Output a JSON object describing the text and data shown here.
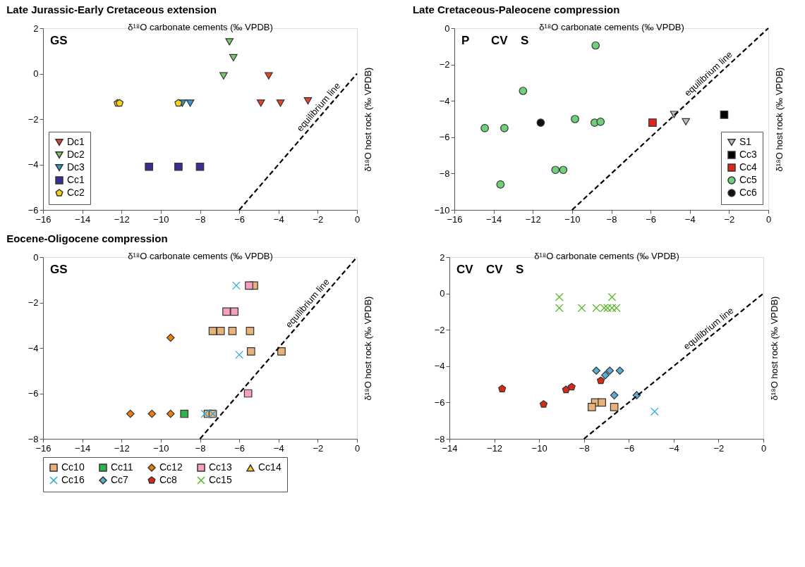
{
  "chart_data": [
    {
      "type": "scatter",
      "title": "Late Jurassic-Early Cretaceous extension",
      "xlabel": "δ¹⁸O carbonate cements (‰ VPDB)",
      "ylabel": "δ¹⁸O host rock (‰ VPDB)",
      "xlim": [
        -16,
        0
      ],
      "ylim": [
        -6,
        2
      ],
      "xticks": [
        -16,
        -14,
        -12,
        -10,
        -8,
        -6,
        -4,
        -2,
        0
      ],
      "yticks": [
        -6,
        -4,
        -2,
        0,
        2
      ],
      "grid": false,
      "legend": "bottom left",
      "series": [
        {
          "name": "Dc1",
          "color": "#e8432a",
          "marker": "triangle-down",
          "x": [
            -4.5,
            -4.9,
            -3.9,
            -2.5
          ],
          "values": [
            -0.1,
            -1.3,
            -1.3,
            -1.2
          ]
        },
        {
          "name": "Dc2",
          "color": "#7cc86a",
          "marker": "triangle-down",
          "x": [
            -6.5,
            -6.3,
            -6.8
          ],
          "values": [
            1.4,
            0.7,
            -0.1
          ]
        },
        {
          "name": "Dc3",
          "color": "#2a9fd6",
          "marker": "triangle-down",
          "x": [
            -8.9,
            -8.5
          ],
          "values": [
            -1.3,
            -1.3
          ]
        },
        {
          "name": "Cc1",
          "color": "#3b2d91",
          "marker": "square",
          "x": [
            -10.6,
            -9.1,
            -8.0
          ],
          "values": [
            -4.1,
            -4.1,
            -4.1
          ]
        },
        {
          "name": "Cc2",
          "color": "#f7d117",
          "x": [
            -12.2,
            -12.1,
            -9.1
          ],
          "values": [
            -1.3,
            -1.3,
            -1.3
          ]
        },
        {
          "name": "equilibrium line",
          "type": "line",
          "color": "#000000",
          "line_style": "dashed",
          "x": [
            -6,
            0
          ],
          "values": [
            -6,
            0
          ]
        }
      ],
      "annotations": [
        "GS"
      ]
    },
    {
      "type": "scatter",
      "title": "Late Cretaceous-Paleocene compression",
      "xlabel": "δ¹⁸O carbonate cements (‰ VPDB)",
      "ylabel": "δ¹⁸O host rock (‰ VPDB)",
      "xlim": [
        -16,
        0
      ],
      "ylim": [
        -10,
        0
      ],
      "xticks": [
        -16,
        -14,
        -12,
        -10,
        -8,
        -6,
        -4,
        -2,
        0
      ],
      "yticks": [
        -10,
        -8,
        -6,
        -4,
        -2,
        0
      ],
      "grid": false,
      "legend": "bottom right",
      "series": [
        {
          "name": "S1",
          "color": "#bdbdbd",
          "marker": "triangle-down",
          "x": [
            -4.8,
            -4.2
          ],
          "values": [
            -4.75,
            -5.15
          ]
        },
        {
          "name": "Cc3",
          "color": "#000000",
          "marker": "square",
          "x": [
            -2.25
          ],
          "values": [
            -4.76
          ]
        },
        {
          "name": "Cc4",
          "color": "#e0251b",
          "marker": "square",
          "x": [
            -5.9
          ],
          "values": [
            -5.2
          ]
        },
        {
          "name": "Cc5",
          "color": "#6fcf7a",
          "marker": "circle",
          "x": [
            -8.8,
            -12.5,
            -14.45,
            -13.45,
            -9.85,
            -8.85,
            -8.55,
            -10.85,
            -10.45,
            -13.65
          ],
          "values": [
            -0.95,
            -3.45,
            -5.5,
            -5.5,
            -5.0,
            -5.2,
            -5.15,
            -7.8,
            -7.8,
            -8.6
          ]
        },
        {
          "name": "Cc6",
          "color": "#111111",
          "marker": "circle",
          "x": [
            -11.6
          ],
          "values": [
            -5.2
          ]
        },
        {
          "name": "equilibrium line",
          "type": "line",
          "color": "#000000",
          "line_style": "dashed",
          "x": [
            -10,
            0
          ],
          "values": [
            -10,
            0
          ]
        }
      ],
      "annotations": [
        "P",
        "CV",
        "S"
      ]
    },
    {
      "type": "scatter",
      "title": "Eocene-Oligocene compression",
      "xlabel": "δ¹⁸O carbonate cements (‰ VPDB)",
      "ylabel": "δ¹⁸O host rock (‰ VPDB)",
      "xlim": [
        -16,
        0
      ],
      "ylim": [
        -8,
        0
      ],
      "xticks": [
        -16,
        -14,
        -12,
        -10,
        -8,
        -6,
        -4,
        -2,
        0
      ],
      "yticks": [
        -8,
        -6,
        -4,
        -2,
        0
      ],
      "grid": false,
      "legend": "bottom",
      "series": [
        {
          "name": "Cc10",
          "color": "#e8b27a",
          "marker": "square",
          "x": [
            -5.25,
            -7.35,
            -6.95,
            -6.35,
            -5.45,
            -5.4,
            -3.85,
            -7.6,
            -7.35
          ],
          "values": [
            -1.25,
            -3.25,
            -3.25,
            -3.25,
            -3.25,
            -4.15,
            -4.15,
            -6.9,
            -6.9
          ]
        },
        {
          "name": "Cc11",
          "color": "#2db34a",
          "marker": "square",
          "x": [
            -8.8
          ],
          "values": [
            -6.9
          ]
        },
        {
          "name": "Cc12",
          "color": "#f07f0a",
          "marker": "diamond",
          "x": [
            -9.5,
            -11.55,
            -10.45,
            -9.5
          ],
          "values": [
            -3.55,
            -6.9,
            -6.9,
            -6.9
          ]
        },
        {
          "name": "Cc13",
          "color": "#f4a0be",
          "marker": "square",
          "x": [
            -5.5,
            -6.65,
            -6.25,
            -5.55
          ],
          "values": [
            -1.25,
            -2.4,
            -2.4,
            -6.0
          ]
        },
        {
          "name": "Cc14",
          "color": "#f7d117",
          "marker": "triangle"
        },
        {
          "name": "Cc16",
          "color": "#26a9d6",
          "marker": "cross",
          "x": [
            -6.15,
            -6.0,
            -7.75,
            -7.35
          ],
          "values": [
            -1.25,
            -4.3,
            -6.9,
            -6.9
          ]
        },
        {
          "name": "equilibrium line",
          "type": "line",
          "color": "#000000",
          "line_style": "dashed",
          "x": [
            -8,
            0
          ],
          "values": [
            -8,
            0
          ]
        }
      ],
      "annotations": [
        "GS"
      ]
    },
    {
      "type": "scatter",
      "xlabel": "δ¹⁸O carbonate cements (‰ VPDB)",
      "ylabel": "δ¹⁸O host rock (‰ VPDB)",
      "xlim": [
        -14,
        0
      ],
      "ylim": [
        -8,
        2
      ],
      "xticks": [
        -14,
        -12,
        -10,
        -8,
        -6,
        -4,
        -2,
        0
      ],
      "yticks": [
        -8,
        -6,
        -4,
        -2,
        0,
        2
      ],
      "grid": false,
      "legend": "bottom",
      "series": [
        {
          "name": "Cc7",
          "color": "#5aaed6",
          "marker": "diamond",
          "x": [
            -7.45,
            -7.05,
            -6.85,
            -6.4,
            -6.65,
            -5.65
          ],
          "values": [
            -4.25,
            -4.5,
            -4.25,
            -4.25,
            -5.6,
            -5.6
          ]
        },
        {
          "name": "Cc8",
          "color": "#d42a1a",
          "x": [
            -11.65,
            -8.8,
            -8.55,
            -7.25,
            -9.8
          ],
          "values": [
            -5.25,
            -5.3,
            -5.15,
            -4.8,
            -6.1
          ]
        },
        {
          "name": "Cc10",
          "color": "#e8b27a",
          "marker": "square",
          "x": [
            -7.5,
            -7.2,
            -7.65,
            -6.65
          ],
          "values": [
            -6.0,
            -6.0,
            -6.25,
            -6.25
          ]
        },
        {
          "name": "Cc15",
          "color": "#5ab52a",
          "marker": "cross",
          "x": [
            -9.1,
            -6.75,
            -9.1,
            -8.1,
            -7.45,
            -7.1,
            -6.95,
            -6.75,
            -6.55
          ],
          "values": [
            -0.2,
            -0.2,
            -0.8,
            -0.8,
            -0.8,
            -0.8,
            -0.8,
            -0.8,
            -0.8
          ]
        },
        {
          "name": "Cc16",
          "color": "#26a9d6",
          "marker": "cross",
          "x": [
            -4.85
          ],
          "values": [
            -6.5
          ]
        },
        {
          "name": "equilibrium line",
          "type": "line",
          "color": "#000000",
          "line_style": "dashed",
          "x": [
            -8,
            0
          ],
          "values": [
            -8,
            0
          ]
        }
      ],
      "annotations": [
        "CV",
        "CV",
        "S"
      ]
    }
  ]
}
